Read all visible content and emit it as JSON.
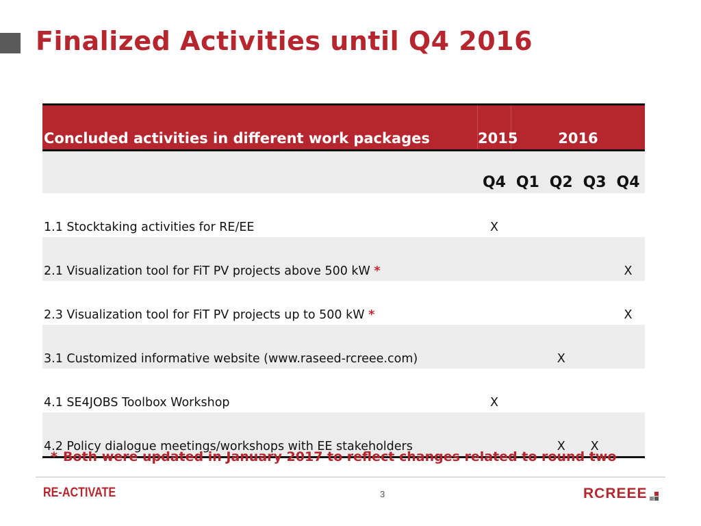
{
  "slide": {
    "title": "Finalized Activities until Q4 2016",
    "page_number": "3",
    "footnote_marker": "*",
    "footnote_text": "Both were updated in January 2017 to reflect changes related to round two"
  },
  "table": {
    "header": {
      "activity_label": "Concluded activities in different work packages",
      "year_2015": "2015",
      "year_2016": "2016"
    },
    "quarters": [
      "Q4",
      "Q1",
      "Q2",
      "Q3",
      "Q4"
    ],
    "rows": [
      {
        "activity": "1.1 Stocktaking activities for RE/EE",
        "star": "",
        "marks": [
          "X",
          "",
          "",
          "",
          ""
        ]
      },
      {
        "activity": "2.1 Visualization tool for FiT PV projects above 500 kW ",
        "star": "*",
        "marks": [
          "",
          "",
          "",
          "",
          "X"
        ]
      },
      {
        "activity": "2.3 Visualization tool for FiT PV projects up to 500 kW ",
        "star": "*",
        "marks": [
          "",
          "",
          "",
          "",
          "X"
        ]
      },
      {
        "activity": "3.1 Customized informative website (www.raseed-rcreee.com)",
        "star": "",
        "marks": [
          "",
          "",
          "X",
          "",
          ""
        ]
      },
      {
        "activity": "4.1 SE4JOBS Toolbox Workshop",
        "star": "",
        "marks": [
          "X",
          "",
          "",
          "",
          ""
        ]
      },
      {
        "activity": "4.2 Policy dialogue meetings/workshops with EE stakeholders",
        "star": "",
        "marks": [
          "",
          "",
          "X",
          "X",
          ""
        ]
      }
    ]
  },
  "footer": {
    "left_logo": "RE-ACTIVATE",
    "right_logo": "RCREEE"
  },
  "colors": {
    "accent": "#b5262e",
    "row_shade": "#ececec",
    "title_square": "#5a5a5a"
  }
}
